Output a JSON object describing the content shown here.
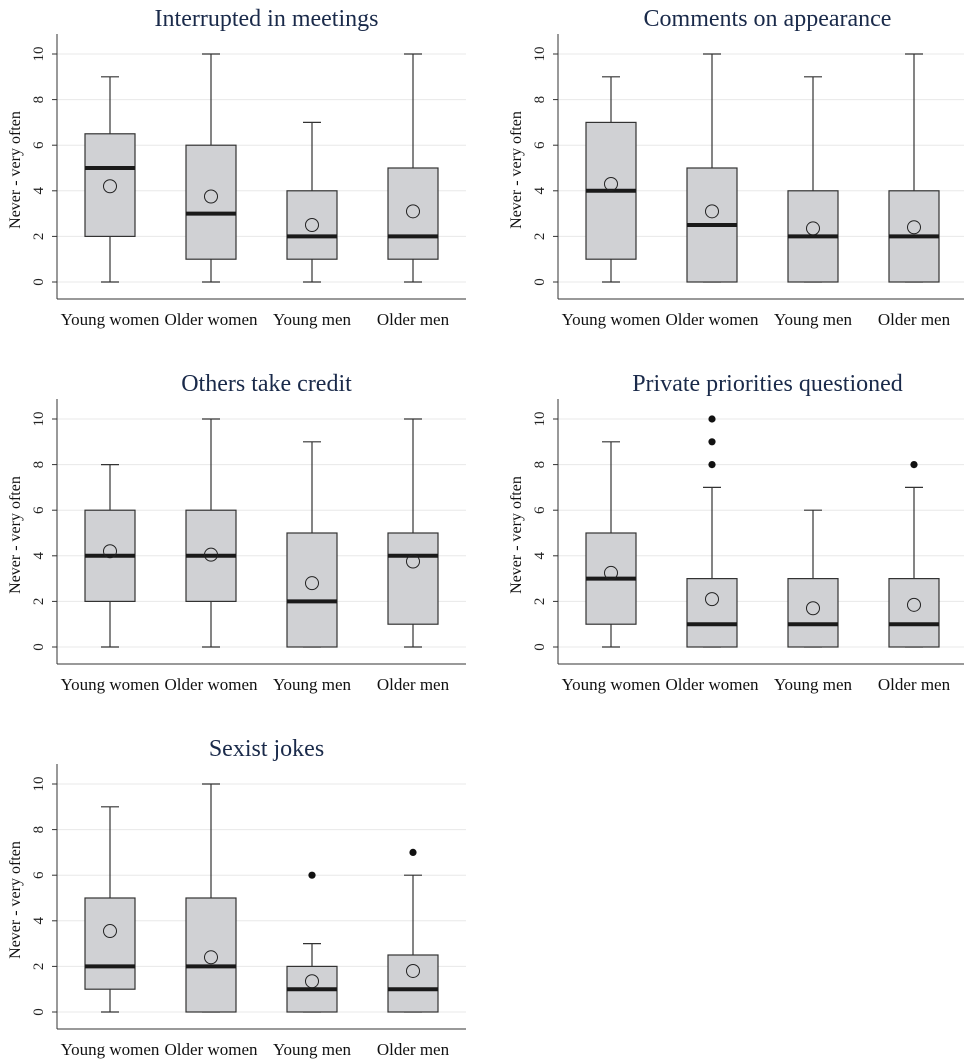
{
  "figure": {
    "y_axis_label": "Never - very often",
    "categories": [
      "Young women",
      "Older women",
      "Young men",
      "Older men"
    ]
  },
  "colors": {
    "box_fill": "#d0d1d4",
    "box_stroke": "#333333",
    "median": "#1a1a1a",
    "grid": "#e8e8e8",
    "title": "#1a2a4a"
  },
  "chart_data": [
    {
      "type": "boxplot",
      "title": "Interrupted in meetings",
      "ylabel": "Never - very often",
      "ylim": [
        0,
        10
      ],
      "yticks": [
        0,
        2,
        4,
        6,
        8,
        10
      ],
      "categories": [
        "Young women",
        "Older women",
        "Young men",
        "Older men"
      ],
      "boxes": [
        {
          "min": 0,
          "q1": 2,
          "median": 5,
          "q3": 6.5,
          "max": 9,
          "mean": 4.2,
          "outliers": []
        },
        {
          "min": 0,
          "q1": 1,
          "median": 3,
          "q3": 6,
          "max": 10,
          "mean": 3.75,
          "outliers": []
        },
        {
          "min": 0,
          "q1": 1,
          "median": 2,
          "q3": 4,
          "max": 7,
          "mean": 2.5,
          "outliers": []
        },
        {
          "min": 0,
          "q1": 1,
          "median": 2,
          "q3": 5,
          "max": 10,
          "mean": 3.1,
          "outliers": []
        }
      ]
    },
    {
      "type": "boxplot",
      "title": "Comments on appearance",
      "ylabel": "Never - very often",
      "ylim": [
        0,
        10
      ],
      "yticks": [
        0,
        2,
        4,
        6,
        8,
        10
      ],
      "categories": [
        "Young women",
        "Older women",
        "Young men",
        "Older men"
      ],
      "boxes": [
        {
          "min": 0,
          "q1": 1,
          "median": 4,
          "q3": 7,
          "max": 9,
          "mean": 4.3,
          "outliers": []
        },
        {
          "min": 0,
          "q1": 0,
          "median": 2.5,
          "q3": 5,
          "max": 10,
          "mean": 3.1,
          "outliers": []
        },
        {
          "min": 0,
          "q1": 0,
          "median": 2,
          "q3": 4,
          "max": 9,
          "mean": 2.35,
          "outliers": []
        },
        {
          "min": 0,
          "q1": 0,
          "median": 2,
          "q3": 4,
          "max": 10,
          "mean": 2.4,
          "outliers": []
        }
      ]
    },
    {
      "type": "boxplot",
      "title": "Others take credit",
      "ylabel": "Never - very often",
      "ylim": [
        0,
        10
      ],
      "yticks": [
        0,
        2,
        4,
        6,
        8,
        10
      ],
      "categories": [
        "Young women",
        "Older women",
        "Young men",
        "Older men"
      ],
      "boxes": [
        {
          "min": 0,
          "q1": 2,
          "median": 4,
          "q3": 6,
          "max": 8,
          "mean": 4.2,
          "outliers": []
        },
        {
          "min": 0,
          "q1": 2,
          "median": 4,
          "q3": 6,
          "max": 10,
          "mean": 4.05,
          "outliers": []
        },
        {
          "min": 0,
          "q1": 0,
          "median": 2,
          "q3": 5,
          "max": 9,
          "mean": 2.8,
          "outliers": []
        },
        {
          "min": 0,
          "q1": 1,
          "median": 4,
          "q3": 5,
          "max": 10,
          "mean": 3.75,
          "outliers": []
        }
      ]
    },
    {
      "type": "boxplot",
      "title": "Private priorities questioned",
      "ylabel": "Never - very often",
      "ylim": [
        0,
        10
      ],
      "yticks": [
        0,
        2,
        4,
        6,
        8,
        10
      ],
      "categories": [
        "Young women",
        "Older women",
        "Young men",
        "Older men"
      ],
      "boxes": [
        {
          "min": 0,
          "q1": 1,
          "median": 3,
          "q3": 5,
          "max": 9,
          "mean": 3.25,
          "outliers": []
        },
        {
          "min": 0,
          "q1": 0,
          "median": 1,
          "q3": 3,
          "max": 7,
          "mean": 2.1,
          "outliers": [
            8,
            9,
            10
          ]
        },
        {
          "min": 0,
          "q1": 0,
          "median": 1,
          "q3": 3,
          "max": 6,
          "mean": 1.7,
          "outliers": []
        },
        {
          "min": 0,
          "q1": 0,
          "median": 1,
          "q3": 3,
          "max": 7,
          "mean": 1.85,
          "outliers": [
            8
          ]
        }
      ]
    },
    {
      "type": "boxplot",
      "title": "Sexist jokes",
      "ylabel": "Never - very often",
      "ylim": [
        0,
        10
      ],
      "yticks": [
        0,
        2,
        4,
        6,
        8,
        10
      ],
      "categories": [
        "Young women",
        "Older women",
        "Young men",
        "Older men"
      ],
      "boxes": [
        {
          "min": 0,
          "q1": 1,
          "median": 2,
          "q3": 5,
          "max": 9,
          "mean": 3.55,
          "outliers": []
        },
        {
          "min": 0,
          "q1": 0,
          "median": 2,
          "q3": 5,
          "max": 10,
          "mean": 2.4,
          "outliers": []
        },
        {
          "min": 0,
          "q1": 0,
          "median": 1,
          "q3": 2,
          "max": 3,
          "mean": 1.35,
          "outliers": [
            6
          ]
        },
        {
          "min": 0,
          "q1": 0,
          "median": 1,
          "q3": 2.5,
          "max": 6,
          "mean": 1.8,
          "outliers": [
            7
          ]
        }
      ]
    }
  ]
}
